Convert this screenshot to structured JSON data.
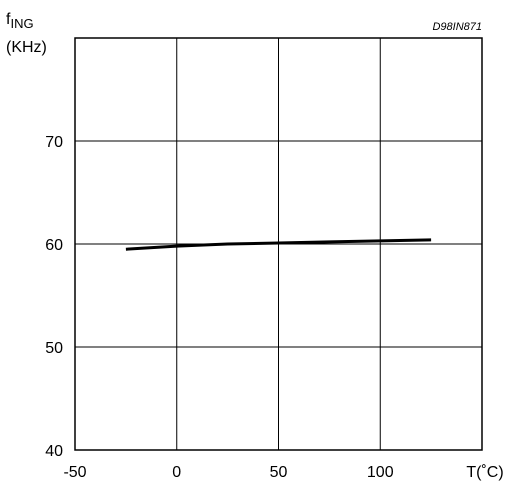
{
  "chart_data": {
    "type": "line",
    "code": "D98IN871",
    "ylabel_main": "f",
    "ylabel_sub": "ING",
    "ylabel_unit": "(KHz)",
    "xlabel": "T(˚C)",
    "xlim": [
      -50,
      150
    ],
    "ylim": [
      40,
      80
    ],
    "x_ticks": [
      -50,
      0,
      50,
      100
    ],
    "x_tick_labels": [
      "-50",
      "0",
      "50",
      "100"
    ],
    "y_ticks": [
      40,
      50,
      60,
      70
    ],
    "y_tick_labels": [
      "40",
      "50",
      "60",
      "70"
    ],
    "grid": true,
    "series": [
      {
        "x": [
          -25,
          0,
          25,
          50,
          75,
          100,
          125
        ],
        "y": [
          59.5,
          59.8,
          60.0,
          60.1,
          60.2,
          60.3,
          60.4
        ]
      }
    ]
  }
}
